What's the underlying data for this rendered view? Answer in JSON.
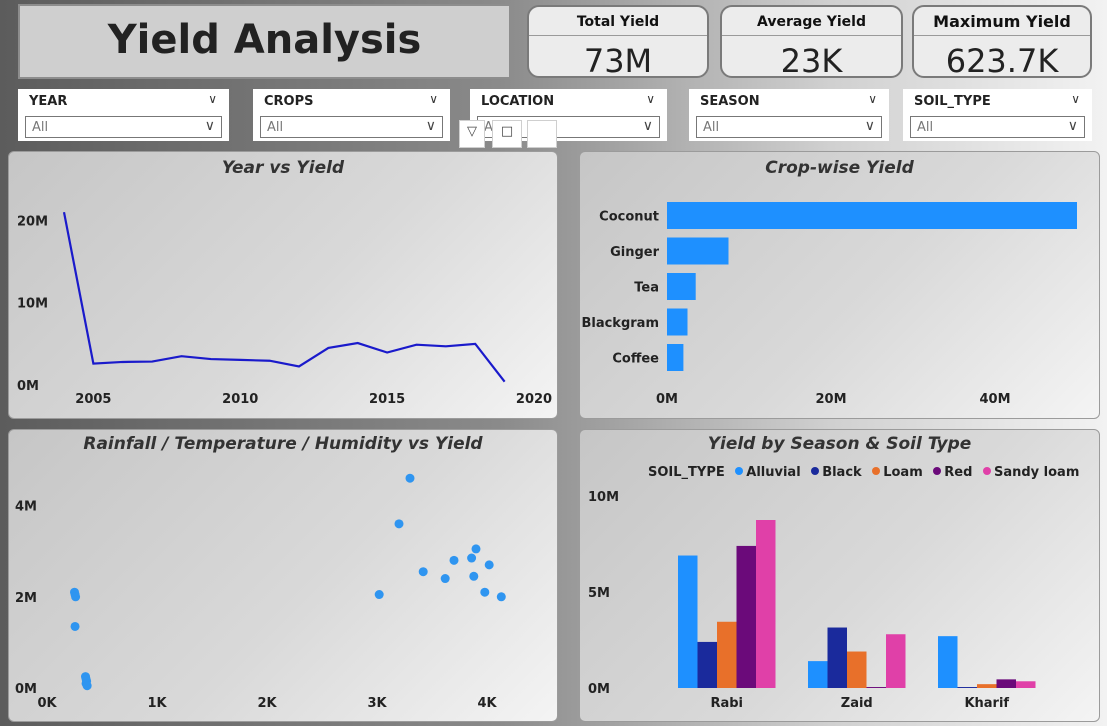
{
  "title": "Yield Analysis",
  "kpis": {
    "total": {
      "label": "Total Yield",
      "value": "73M"
    },
    "average": {
      "label": "Average Yield",
      "value": "23K"
    },
    "maximum": {
      "label": "Maximum Yield",
      "value": "623.7K"
    }
  },
  "slicers": [
    {
      "name": "YEAR",
      "value": "All"
    },
    {
      "name": "CROPS",
      "value": "All"
    },
    {
      "name": "LOCATION",
      "value": "All"
    },
    {
      "name": "SEASON",
      "value": "All"
    },
    {
      "name": "SOIL_TYPE",
      "value": "All"
    }
  ],
  "colors": {
    "line": "#1a1acb",
    "bar": "#1e90ff",
    "scatter": "#2f95f0"
  },
  "chart_data": [
    {
      "type": "line",
      "title": "Year vs Yield",
      "x": [
        2004,
        2005,
        2006,
        2007,
        2008,
        2009,
        2010,
        2011,
        2012,
        2013,
        2014,
        2015,
        2016,
        2017,
        2018,
        2019
      ],
      "y": [
        21000000,
        2600000,
        2800000,
        2850000,
        3500000,
        3150000,
        3050000,
        2950000,
        2250000,
        4500000,
        5100000,
        3950000,
        4900000,
        4700000,
        5000000,
        400000
      ],
      "xticks": [
        "2005",
        "2010",
        "2015",
        "2020"
      ],
      "yticks": [
        "20M",
        "10M",
        "0M"
      ],
      "xlim": [
        2004,
        2020
      ],
      "ylim": [
        0,
        22000000
      ]
    },
    {
      "type": "bar",
      "orientation": "horizontal",
      "title": "Crop-wise Yield",
      "categories": [
        "Coconut",
        "Ginger",
        "Tea",
        "Blackgram",
        "Coffee"
      ],
      "values": [
        50000000,
        7500000,
        3500000,
        2500000,
        2000000
      ],
      "xticks": [
        "0M",
        "20M",
        "40M"
      ],
      "xlim": [
        0,
        50000000
      ]
    },
    {
      "type": "scatter",
      "title": "Rainfall / Temperature / Humidity vs Yield",
      "points": [
        [
          250,
          2100000
        ],
        [
          255,
          2050000
        ],
        [
          260,
          2000000
        ],
        [
          255,
          1350000
        ],
        [
          350,
          250000
        ],
        [
          355,
          200000
        ],
        [
          360,
          150000
        ],
        [
          355,
          100000
        ],
        [
          365,
          50000
        ],
        [
          3020,
          2050000
        ],
        [
          3200,
          3600000
        ],
        [
          3300,
          4600000
        ],
        [
          3420,
          2550000
        ],
        [
          3620,
          2400000
        ],
        [
          3700,
          2800000
        ],
        [
          3860,
          2850000
        ],
        [
          3880,
          2450000
        ],
        [
          3900,
          3050000
        ],
        [
          3980,
          2100000
        ],
        [
          4020,
          2700000
        ],
        [
          4130,
          2000000
        ]
      ],
      "xticks": [
        "0K",
        "1K",
        "2K",
        "3K",
        "4K"
      ],
      "yticks": [
        "4M",
        "2M",
        "0M"
      ],
      "xlim": [
        0,
        4500
      ],
      "ylim": [
        0,
        5000000
      ]
    },
    {
      "type": "bar",
      "orientation": "vertical",
      "title": "Yield by Season & Soil Type",
      "legend_title": "SOIL_TYPE",
      "categories": [
        "Rabi",
        "Zaid",
        "Kharif"
      ],
      "series": [
        {
          "name": "Alluvial",
          "color": "#1e90ff",
          "values": [
            6900000,
            1400000,
            2700000
          ]
        },
        {
          "name": "Black",
          "color": "#1a2a9c",
          "values": [
            2400000,
            3150000,
            50000
          ]
        },
        {
          "name": "Loam",
          "color": "#e8702a",
          "values": [
            3450000,
            1900000,
            200000
          ]
        },
        {
          "name": "Red",
          "color": "#6b0a7a",
          "values": [
            7400000,
            50000,
            450000
          ]
        },
        {
          "name": "Sandy loam",
          "color": "#e040a8",
          "values": [
            8750000,
            2800000,
            350000
          ]
        }
      ],
      "yticks": [
        "10M",
        "5M",
        "0M"
      ],
      "ylim": [
        0,
        10000000
      ]
    }
  ]
}
